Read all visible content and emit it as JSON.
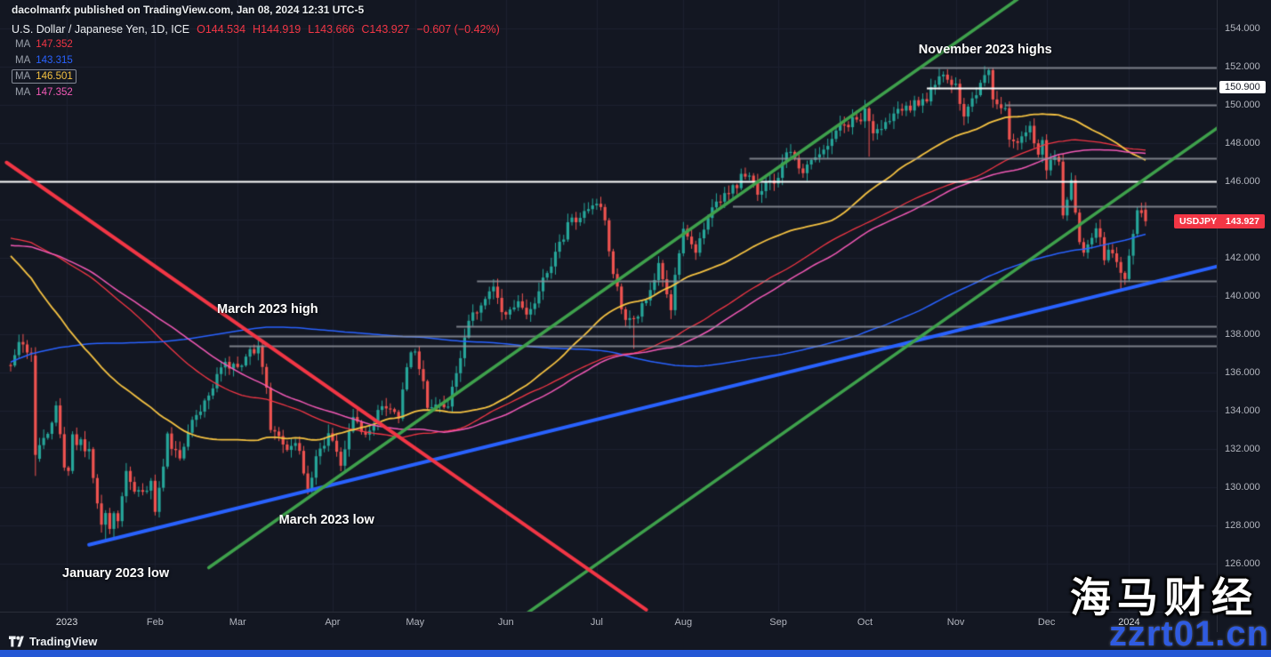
{
  "page": {
    "attribution": "dacolmanfx published on TradingView.com, Jan 08, 2024 12:31 UTC-5"
  },
  "header": {
    "symbol_title": "U.S. Dollar / Japanese Yen, 1D, ICE",
    "ohlc": {
      "o": "O144.534",
      "h": "H144.919",
      "l": "L143.666",
      "c": "C143.927",
      "change": "−0.607 (−0.42%)",
      "color": "#f23645"
    },
    "ma_rows": [
      {
        "label": "MA",
        "value": "147.352",
        "color": "#f23645",
        "selected": false
      },
      {
        "label": "MA",
        "value": "143.315",
        "color": "#2962ff",
        "selected": false
      },
      {
        "label": "MA",
        "value": "146.501",
        "color": "#f5c242",
        "selected": true
      },
      {
        "label": "MA",
        "value": "147.352",
        "color": "#f259b6",
        "selected": false
      }
    ]
  },
  "chart_data": {
    "type": "candlestick",
    "title": "U.S. Dollar / Japanese Yen, 1D, ICE",
    "symbol": "USDJPY",
    "interval": "1D",
    "exchange": "ICE",
    "last_bar": {
      "open": 144.534,
      "high": 144.919,
      "low": 143.666,
      "close": 143.927,
      "change": "−0.607",
      "change_pct": "−0.42%"
    },
    "axes": {
      "price_min": 123.5,
      "price_max": 155.5,
      "grid_step": 2,
      "price_labels": [
        "154.000",
        "152.000",
        "150.000",
        "148.000",
        "146.000",
        "142.000",
        "140.000",
        "138.000",
        "136.000",
        "134.000",
        "132.000",
        "130.000",
        "128.000",
        "126.000"
      ]
    },
    "axis_labels_special": {
      "level_label": "150.900",
      "price_label": {
        "symbol": "USDJPY",
        "value": "143.927"
      }
    },
    "time_ticks": [
      {
        "label": "2023",
        "day": 13.6
      },
      {
        "label": "Feb",
        "day": 35
      },
      {
        "label": "Mar",
        "day": 55
      },
      {
        "label": "Apr",
        "day": 78
      },
      {
        "label": "May",
        "day": 98
      },
      {
        "label": "Jun",
        "day": 120
      },
      {
        "label": "Jul",
        "day": 142
      },
      {
        "label": "Aug",
        "day": 163
      },
      {
        "label": "Sep",
        "day": 186
      },
      {
        "label": "Oct",
        "day": 207
      },
      {
        "label": "Nov",
        "day": 229
      },
      {
        "label": "Dec",
        "day": 251
      },
      {
        "label": "2024",
        "day": 271
      }
    ],
    "seed_anchors": [
      [
        -215,
        114.5
      ],
      [
        -200,
        118.5
      ],
      [
        -185,
        126.5
      ],
      [
        -170,
        128.8
      ],
      [
        -155,
        127.0
      ],
      [
        -140,
        131.5
      ],
      [
        -125,
        135.5
      ],
      [
        -110,
        137.3
      ],
      [
        -95,
        139.0
      ],
      [
        -80,
        143.5
      ],
      [
        -65,
        144.8
      ],
      [
        -52,
        150.8
      ],
      [
        -45,
        148.5
      ],
      [
        -38,
        146.5
      ],
      [
        -30,
        139.0
      ],
      [
        -22,
        138.7
      ],
      [
        -15,
        140.3
      ],
      [
        -8,
        137.0
      ],
      [
        -1,
        136.6
      ]
    ],
    "price_anchors": [
      [
        0,
        136.2
      ],
      [
        2,
        137.7
      ],
      [
        5,
        136.9
      ],
      [
        6,
        131.7
      ],
      [
        9,
        132.8
      ],
      [
        11,
        134.4
      ],
      [
        13,
        131.1
      ],
      [
        14,
        131.0
      ],
      [
        15,
        132.6
      ],
      [
        19,
        131.9
      ],
      [
        21,
        129.2
      ],
      [
        22,
        127.9
      ],
      [
        23,
        128.5
      ],
      [
        24,
        128.1
      ],
      [
        25,
        128.9
      ],
      [
        26,
        128.4
      ],
      [
        28,
        130.6
      ],
      [
        30,
        129.6
      ],
      [
        34,
        130.1
      ],
      [
        35,
        128.9
      ],
      [
        37,
        131.2
      ],
      [
        38,
        132.7
      ],
      [
        41,
        131.4
      ],
      [
        44,
        133.3
      ],
      [
        48,
        134.9
      ],
      [
        51,
        136.4
      ],
      [
        54,
        136.2
      ],
      [
        60,
        137.4
      ],
      [
        62,
        135.0
      ],
      [
        63,
        133.2
      ],
      [
        67,
        131.8
      ],
      [
        69,
        132.5
      ],
      [
        72,
        130.0
      ],
      [
        74,
        131.5
      ],
      [
        77,
        132.8
      ],
      [
        78,
        132.4
      ],
      [
        80,
        131.3
      ],
      [
        83,
        133.6
      ],
      [
        86,
        132.5
      ],
      [
        89,
        134.1
      ],
      [
        94,
        133.7
      ],
      [
        96,
        136.3
      ],
      [
        98,
        137.3
      ],
      [
        101,
        134.3
      ],
      [
        106,
        134.5
      ],
      [
        108,
        136.1
      ],
      [
        111,
        138.7
      ],
      [
        115,
        139.7
      ],
      [
        117,
        140.4
      ],
      [
        119,
        139.3
      ],
      [
        120,
        138.8
      ],
      [
        123,
        139.6
      ],
      [
        125,
        138.9
      ],
      [
        128,
        140.2
      ],
      [
        131,
        141.8
      ],
      [
        135,
        143.7
      ],
      [
        139,
        144.3
      ],
      [
        142,
        144.7
      ],
      [
        144,
        144.1
      ],
      [
        145,
        142.1
      ],
      [
        147,
        140.3
      ],
      [
        149,
        138.5
      ],
      [
        151,
        138.8
      ],
      [
        155,
        140.1
      ],
      [
        157,
        141.5
      ],
      [
        160,
        139.4
      ],
      [
        162,
        142.3
      ],
      [
        163,
        143.3
      ],
      [
        166,
        142.5
      ],
      [
        170,
        144.9
      ],
      [
        174,
        145.4
      ],
      [
        178,
        146.4
      ],
      [
        181,
        145.5
      ],
      [
        186,
        146.2
      ],
      [
        188,
        147.7
      ],
      [
        192,
        146.6
      ],
      [
        196,
        147.5
      ],
      [
        202,
        149.0
      ],
      [
        206,
        149.4
      ],
      [
        207,
        149.8
      ],
      [
        208,
        149.0
      ],
      [
        210,
        148.5
      ],
      [
        214,
        149.6
      ],
      [
        218,
        149.9
      ],
      [
        222,
        150.4
      ],
      [
        226,
        151.7
      ],
      [
        229,
        150.9
      ],
      [
        231,
        149.4
      ],
      [
        233,
        150.4
      ],
      [
        236,
        151.5
      ],
      [
        237,
        151.7
      ],
      [
        238,
        150.4
      ],
      [
        241,
        149.6
      ],
      [
        242,
        148.4
      ],
      [
        243,
        147.9
      ],
      [
        247,
        148.8
      ],
      [
        249,
        147.2
      ],
      [
        250,
        148.2
      ],
      [
        251,
        146.8
      ],
      [
        254,
        147.3
      ],
      [
        255,
        144.1
      ],
      [
        256,
        145.0
      ],
      [
        257,
        146.2
      ],
      [
        259,
        142.9
      ],
      [
        260,
        142.1
      ],
      [
        263,
        143.8
      ],
      [
        265,
        142.1
      ],
      [
        267,
        142.4
      ],
      [
        269,
        141.4
      ],
      [
        270,
        141.0
      ],
      [
        271,
        142.0
      ],
      [
        272,
        143.3
      ],
      [
        273,
        144.6
      ],
      [
        274,
        144.6
      ],
      [
        275,
        143.927
      ]
    ],
    "overrides": {
      "6": {
        "o": 136.9,
        "c": 131.7,
        "l": 130.6
      },
      "23": {
        "l": 127.22
      },
      "60": {
        "h": 137.91
      },
      "72": {
        "l": 129.64
      },
      "151": {
        "l": 137.25
      },
      "208": {
        "l": 147.3
      },
      "237": {
        "h": 151.92
      },
      "269": {
        "l": 140.25
      },
      "275": {
        "o": 144.534,
        "h": 144.919,
        "l": 143.666,
        "c": 143.927
      }
    },
    "num_days": 276,
    "candle_colors": {
      "up": "#26a69a",
      "down": "#ef5350"
    },
    "moving_averages": [
      {
        "name": "ma-red",
        "period": 90,
        "color": "#f23645",
        "width": 1.3,
        "label_value": "147.352"
      },
      {
        "name": "ma-blue",
        "period": 200,
        "color": "#2962ff",
        "width": 1.5,
        "label_value": "143.315"
      },
      {
        "name": "ma-yellow",
        "period": 55,
        "color": "#f5c242",
        "width": 1.8,
        "label_value": "146.501"
      },
      {
        "name": "ma-pink",
        "period": 100,
        "color": "#f259b6",
        "width": 1.5,
        "label_value": "147.352"
      }
    ],
    "levels": [
      {
        "name": "november-high-zone",
        "price": 151.95,
        "from_day": 220,
        "color": "#9598a1",
        "width": 2
      },
      {
        "name": "level-150-900",
        "price": 150.9,
        "from_day": 222,
        "color": "#ffffff",
        "width": 2
      },
      {
        "name": "level-150",
        "price": 150.0,
        "from_day": 241,
        "color": "#9598a1",
        "width": 2
      },
      {
        "name": "level-147",
        "price": 147.2,
        "from_day": 179,
        "color": "#9598a1",
        "width": 2
      },
      {
        "name": "level-146-white",
        "price": 146.0,
        "from_day": null,
        "color": "#ffffff",
        "width": 2
      },
      {
        "name": "level-144-7",
        "price": 144.7,
        "from_day": 175,
        "color": "#9598a1",
        "width": 2
      },
      {
        "name": "level-140-8",
        "price": 140.8,
        "from_day": 113,
        "color": "#9598a1",
        "width": 2
      },
      {
        "name": "level-138-5",
        "price": 138.45,
        "from_day": 108,
        "color": "#9598a1",
        "width": 2
      },
      {
        "name": "march-high-zone-top",
        "price": 137.9,
        "from_day": 53,
        "color": "#9598a1",
        "width": 2
      },
      {
        "name": "march-high-zone-bottom",
        "price": 137.4,
        "from_day": 53,
        "color": "#9598a1",
        "width": 2
      }
    ],
    "trendlines": [
      {
        "name": "blue-long-term-support",
        "color": "#2962ff",
        "width": 4,
        "points": [
          [
            19,
            127.0
          ],
          [
            293,
            141.6
          ]
        ]
      },
      {
        "name": "green-channel-main",
        "color": "#3fa14c",
        "width": 3.5,
        "points": [
          [
            48,
            125.8
          ],
          [
            247,
            156.0
          ]
        ]
      },
      {
        "name": "green-channel-lower",
        "color": "#3fa14c",
        "width": 3.5,
        "points": [
          [
            96,
            119.0
          ],
          [
            295,
            149.2
          ]
        ]
      },
      {
        "name": "red-downtrend-line",
        "color": "#f23645",
        "width": 4,
        "points": [
          [
            -1,
            147.0
          ],
          [
            154,
            123.6
          ]
        ]
      }
    ],
    "annotations": [
      {
        "text": "November 2023 highs",
        "day": 220,
        "price": 153.25
      },
      {
        "text": "March 2023 high",
        "day": 50,
        "price": 139.7
      },
      {
        "text": "March 2023 low",
        "day": 65,
        "price": 128.65
      },
      {
        "text": "January 2023 low",
        "day": 12.5,
        "price": 125.85
      }
    ]
  },
  "footer": {
    "brand": "TradingView"
  },
  "watermark": {
    "line1": "海马财经",
    "line2": "zzrt01.cn"
  }
}
